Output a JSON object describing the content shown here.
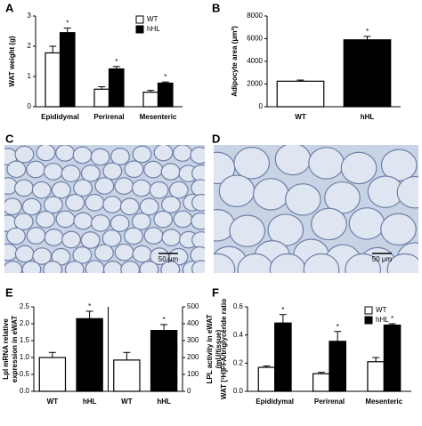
{
  "chart_data": [
    {
      "type": "grouped_bar",
      "panel": "A",
      "ylabel": "WAT weight (g)",
      "categories": [
        "Epididymal",
        "Perirenal",
        "Mesenteric"
      ],
      "series": [
        {
          "name": "WT",
          "color": "#ffffff",
          "values": [
            1.78,
            0.58,
            0.48
          ],
          "errors": [
            0.22,
            0.08,
            0.06
          ]
        },
        {
          "name": "hHL",
          "color": "#000000",
          "values": [
            2.45,
            1.25,
            0.78
          ],
          "errors": [
            0.15,
            0.08,
            0.04
          ],
          "annotations": [
            "*",
            "*",
            "*"
          ]
        }
      ],
      "ylim": [
        0,
        3
      ],
      "yticks": [
        0,
        1,
        2,
        3
      ],
      "legend": "top-right"
    },
    {
      "type": "bar",
      "panel": "B",
      "ylabel": "Adipocyte area (μm²)",
      "categories": [
        "WT",
        "hHL"
      ],
      "values": [
        2250,
        5900
      ],
      "errors": [
        100,
        300
      ],
      "colors": [
        "#ffffff",
        "#000000"
      ],
      "annotations": [
        null,
        "*"
      ],
      "ylim": [
        0,
        8000
      ],
      "yticks": [
        0,
        2000,
        4000,
        6000,
        8000
      ]
    },
    {
      "type": "image",
      "panel": "C",
      "scale_bar": "50 μm",
      "cell_size": "small"
    },
    {
      "type": "image",
      "panel": "D",
      "scale_bar": "50 μm",
      "cell_size": "large"
    },
    {
      "type": "split_bar",
      "panel": "E",
      "ylabel": [
        "Lpl mRNA relative",
        "expression in eWAT"
      ],
      "y2label": [
        "LPL activity in eWAT",
        "(mU/tissue)"
      ],
      "categories": [
        "WT",
        "hHL"
      ],
      "colors": [
        "#ffffff",
        "#000000"
      ],
      "values": [
        1.0,
        2.15
      ],
      "errors": [
        0.15,
        0.22
      ],
      "annotations": [
        null,
        "*"
      ],
      "values2": [
        185,
        360
      ],
      "errors2": [
        45,
        35
      ],
      "annotations2": [
        null,
        "*"
      ],
      "ylim": [
        0,
        2.5
      ],
      "yticks": [
        {
          "value": 0,
          "label": "0.0"
        },
        0.5,
        {
          "value": 1,
          "label": "1.0"
        },
        1.5,
        {
          "value": 2,
          "label": "2.0"
        },
        2.5
      ],
      "y2lim": [
        0,
        500
      ],
      "y2ticks": [
        0,
        100,
        200,
        300,
        400,
        500
      ]
    },
    {
      "type": "grouped_bar",
      "panel": "F",
      "ylabel": "WAT [³H]FFA/triglyceride ratio",
      "categories": [
        "Epididymal",
        "Perirenal",
        "Mesenteric"
      ],
      "series": [
        {
          "name": "WT",
          "color": "#ffffff",
          "values": [
            0.17,
            0.125,
            0.21
          ],
          "errors": [
            0.01,
            0.01,
            0.03
          ]
        },
        {
          "name": "hHL",
          "color": "#000000",
          "values": [
            0.485,
            0.355,
            0.47
          ],
          "errors": [
            0.06,
            0.07,
            0.01
          ],
          "annotations": [
            "*",
            "*",
            "*"
          ]
        }
      ],
      "ylim": [
        0,
        0.6
      ],
      "yticks": [
        {
          "value": 0,
          "label": "0.0"
        },
        0.2,
        0.4,
        0.6
      ],
      "legend": "top-right"
    }
  ]
}
